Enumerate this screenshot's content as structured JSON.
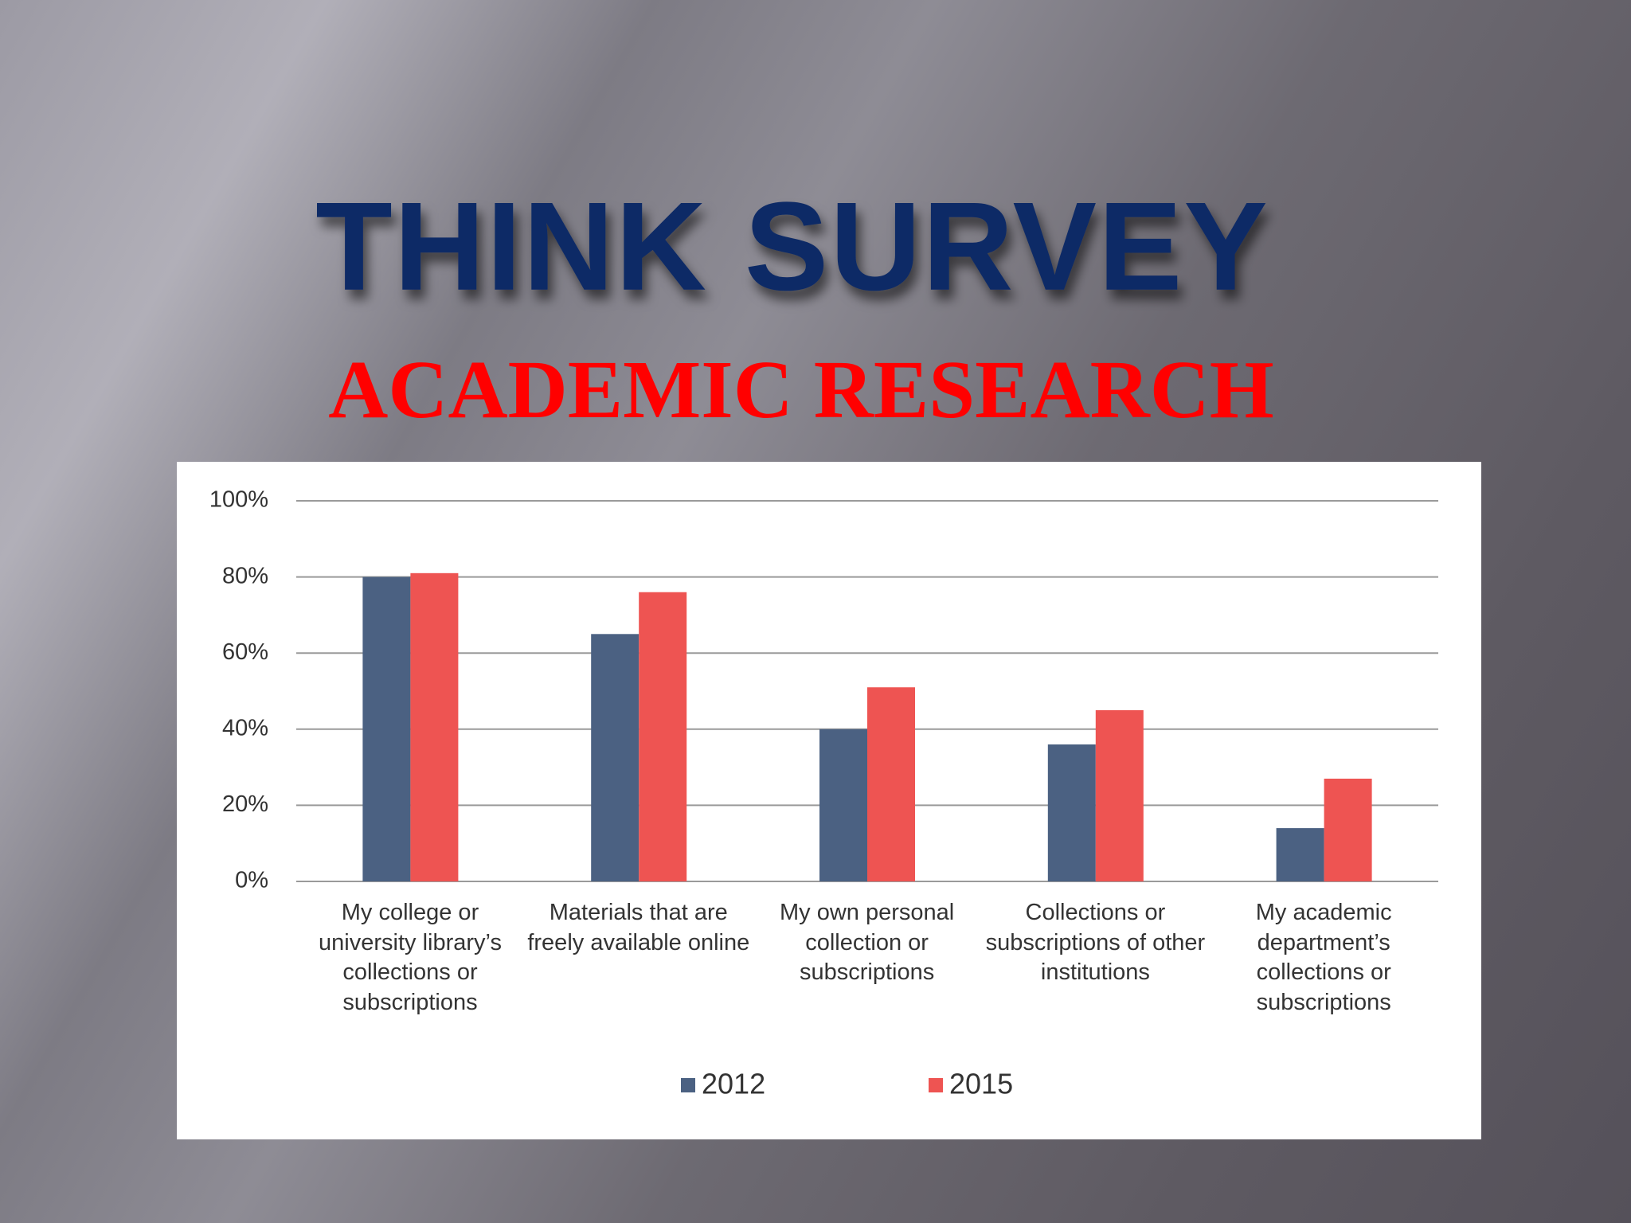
{
  "chart_data": {
    "type": "bar",
    "title": "THINK SURVEY",
    "subtitle": "ACADEMIC RESEARCH",
    "categories": [
      "My college or university library’s collections or subscriptions",
      "Materials that are freely available online",
      "My own personal collection or subscriptions",
      "Collections or subscriptions of other institutions",
      "My academic department’s collections or subscriptions"
    ],
    "series": [
      {
        "name": "2012",
        "color": "#4b6182",
        "values": [
          80,
          65,
          40,
          36,
          14
        ]
      },
      {
        "name": "2015",
        "color": "#ee5452",
        "values": [
          81,
          76,
          51,
          45,
          27
        ]
      }
    ],
    "ylim": [
      0,
      100
    ],
    "yticks": [
      {
        "value": 0,
        "label": "0%"
      },
      {
        "value": 20,
        "label": "20%"
      },
      {
        "value": 40,
        "label": "40%"
      },
      {
        "value": 60,
        "label": "60%"
      },
      {
        "value": 80,
        "label": "80%"
      },
      {
        "value": 100,
        "label": "100%"
      }
    ],
    "grid": true,
    "legend": "bottom"
  }
}
